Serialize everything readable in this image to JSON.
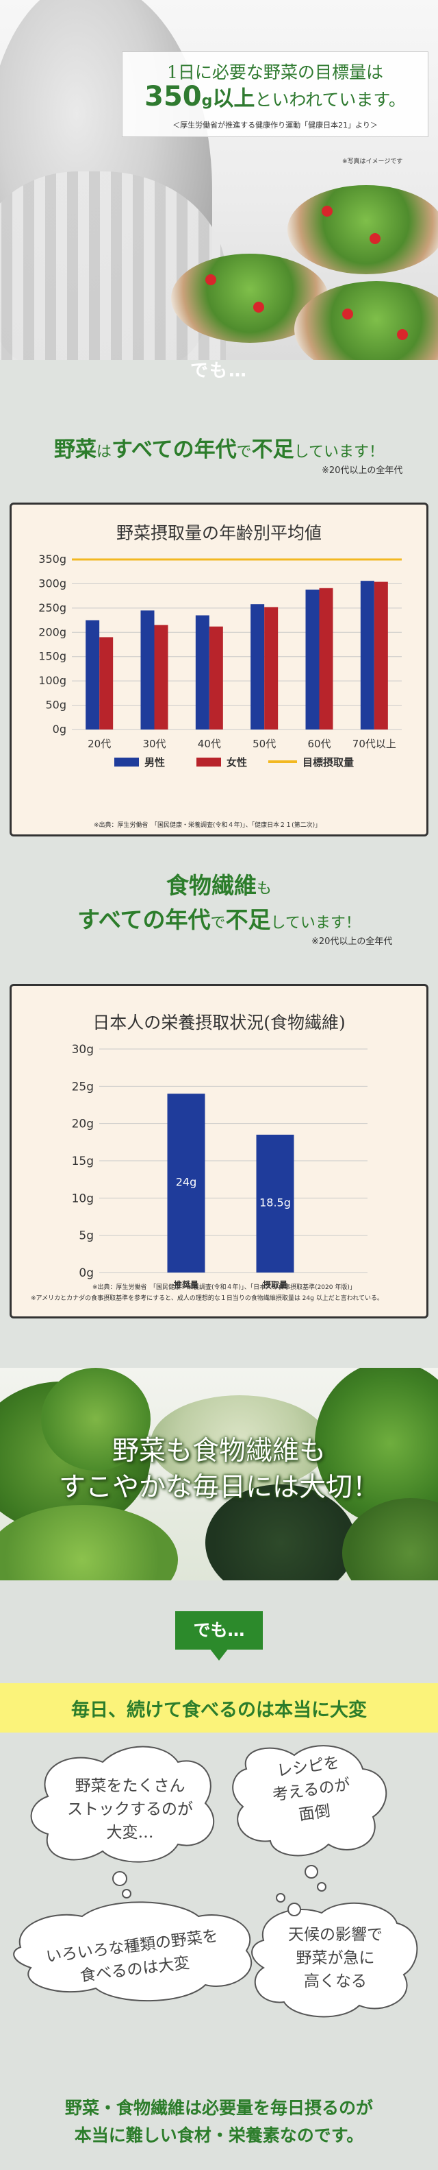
{
  "hero": {
    "line1": "1日に必要な野菜の目標量は",
    "amount": "350",
    "unit": "g",
    "line2_bold": "以上",
    "line2_rest": "といわれています。",
    "line3": "＜厚生労働省が推進する健康作り運動「健康日本21」より＞",
    "image_note": "※写真はイメージです"
  },
  "demo1": "でも…",
  "headline1": {
    "part1": "野菜",
    "part2": "は",
    "part3": "すべての年代",
    "part4": "で",
    "part5": "不足",
    "part6": "しています！",
    "note": "※20代以上の全年代"
  },
  "headline2": {
    "line1a": "食物繊維",
    "line1b": "も",
    "line2a": "すべての年代",
    "line2b": "で",
    "line2c": "不足",
    "line2d": "しています！",
    "note": "※20代以上の全年代"
  },
  "chart_data": [
    {
      "type": "bar",
      "title": "野菜摂取量の年齢別平均値",
      "categories": [
        "20代",
        "30代",
        "40代",
        "50代",
        "60代",
        "70代以上"
      ],
      "series": [
        {
          "name": "男性",
          "values": [
            225,
            245,
            235,
            258,
            288,
            306
          ],
          "color": "#1f3c9b"
        },
        {
          "name": "女性",
          "values": [
            190,
            215,
            212,
            252,
            291,
            304
          ],
          "color": "#b8242b"
        }
      ],
      "target_line": {
        "name": "目標摂取量",
        "value": 350,
        "color": "#f2b821"
      },
      "y_ticks": [
        "0g",
        "50g",
        "100g",
        "150g",
        "200g",
        "250g",
        "300g",
        "350g"
      ],
      "ylim": [
        0,
        350
      ],
      "source": "※出典：厚生労働省　「国民健康・栄養調査(令和４年)」、「健康日本２１(第二次)」"
    },
    {
      "type": "bar",
      "title": "日本人の栄養摂取状況(食物繊維)",
      "categories": [
        "推奨量",
        "摂取量"
      ],
      "values": [
        24,
        18.5
      ],
      "value_labels": [
        "24g",
        "18.5g"
      ],
      "color": "#1f3c9b",
      "y_ticks": [
        "0g",
        "5g",
        "10g",
        "15g",
        "20g",
        "25g",
        "30g"
      ],
      "ylim": [
        0,
        30
      ],
      "source1": "※出典：厚生労働省　「国民健康・栄養調査(令和４年)」、「日本人の食事摂取基準(2020 年版)」",
      "source2": "※アメリカとカナダの食事摂取基準を参考にすると、成人の理想的な１日当りの食物繊維摂取量は 24g 以上だと言われている。"
    }
  ],
  "greens": {
    "line1": "野菜も食物繊維も",
    "line2": "すこやかな毎日には大切！"
  },
  "demo2": "でも…",
  "daily": "毎日、続けて食べるのは本当に大変",
  "bubbles": [
    {
      "l1": "野菜をたくさん",
      "l2": "ストックするのが",
      "l3": "大変…"
    },
    {
      "l1": "レシピを",
      "l2": "考えるのが",
      "l3": "面倒"
    },
    {
      "l1": "いろいろな種類の野菜を",
      "l2": "食べるのは大変"
    },
    {
      "l1": "天候の影響で",
      "l2": "野菜が急に",
      "l3": "高くなる"
    }
  ],
  "final": {
    "line1": "野菜・食物繊維は必要量を毎日摂るのが",
    "line2": "本当に難しい食材・栄養素なのです。"
  },
  "colors": {
    "green": "#2c7d2b",
    "male": "#1f3c9b",
    "female": "#b8242b",
    "target": "#f2b821",
    "yellow": "#fbf37a"
  }
}
